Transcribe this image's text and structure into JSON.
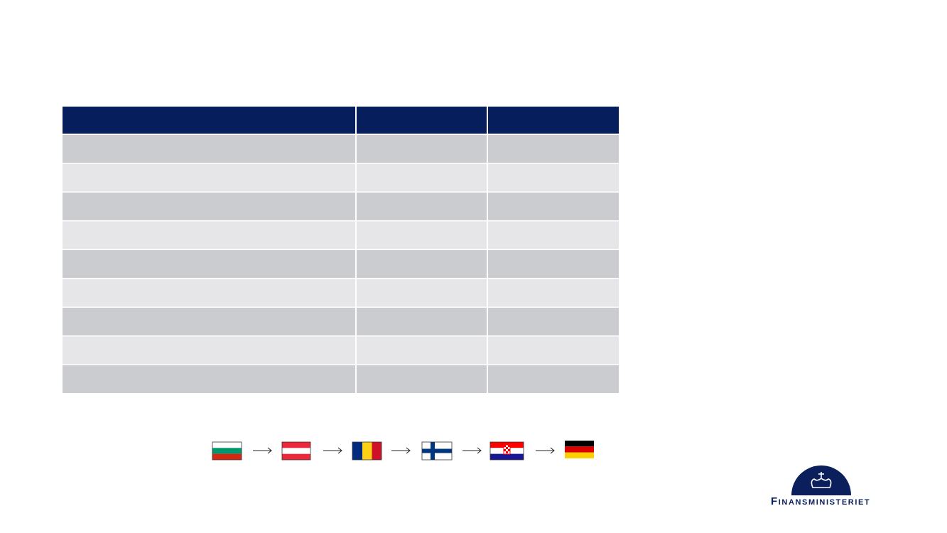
{
  "logo": {
    "text": "Finansministeriet"
  }
}
